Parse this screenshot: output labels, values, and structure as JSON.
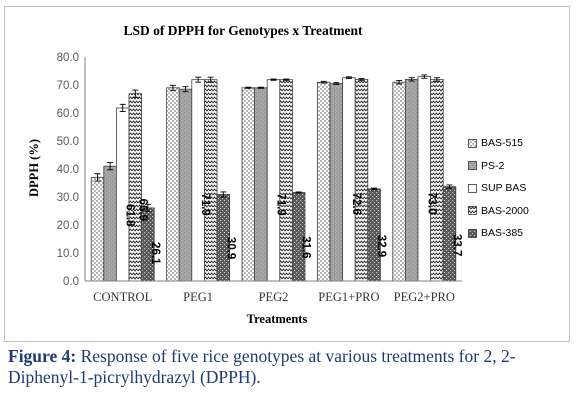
{
  "chart_data": {
    "type": "bar",
    "title": "LSD of DPPH for Genotypes x Treatment",
    "xlabel": "Treatments",
    "ylabel": "DPPH (%)",
    "ylim": [
      0,
      80
    ],
    "yticks": [
      "0.0",
      "10.0",
      "20.0",
      "30.0",
      "40.0",
      "50.0",
      "60.0",
      "70.0",
      "80.0"
    ],
    "categories": [
      "CONTROL",
      "PEG1",
      "PEG2",
      "PEG1+PRO",
      "PEG2+PRO"
    ],
    "series": [
      {
        "name": "BAS-515",
        "values": [
          37.0,
          69.0,
          69.0,
          71.0,
          71.0
        ],
        "pattern": "dots"
      },
      {
        "name": "PS-2",
        "values": [
          41.0,
          68.5,
          69.0,
          70.5,
          72.0
        ],
        "pattern": "gray"
      },
      {
        "name": "SUP BAS",
        "values": [
          61.8,
          71.9,
          71.9,
          72.6,
          73.0
        ],
        "pattern": "white"
      },
      {
        "name": "BAS-2000",
        "values": [
          66.9,
          71.9,
          71.9,
          72.0,
          72.0
        ],
        "pattern": "zigzag"
      },
      {
        "name": "BAS-385",
        "values": [
          26.1,
          30.9,
          31.6,
          32.9,
          33.7
        ],
        "pattern": "dark"
      }
    ],
    "error_bars": [
      1.3,
      0.9,
      0.2,
      0.3,
      0.6
    ],
    "data_labels": [
      {
        "series": 2,
        "category": 0,
        "text": "61.8"
      },
      {
        "series": 3,
        "category": 0,
        "text": "66.9"
      },
      {
        "series": 4,
        "category": 0,
        "text": "26.1"
      },
      {
        "series": 2,
        "category": 1,
        "text": "71.9"
      },
      {
        "series": 4,
        "category": 1,
        "text": "30.9"
      },
      {
        "series": 2,
        "category": 2,
        "text": "71.9"
      },
      {
        "series": 4,
        "category": 2,
        "text": "31.6"
      },
      {
        "series": 2,
        "category": 3,
        "text": "72.6"
      },
      {
        "series": 4,
        "category": 3,
        "text": "32.9"
      },
      {
        "series": 2,
        "category": 4,
        "text": "73.0"
      },
      {
        "series": 4,
        "category": 4,
        "text": "33.7"
      }
    ],
    "grid": false,
    "legend_position": "right"
  },
  "caption": {
    "label": "Figure 4:",
    "text": " Response of five rice genotypes at various treatments for 2, 2-Diphenyl-1-picrylhydrazyl (DPPH)."
  }
}
